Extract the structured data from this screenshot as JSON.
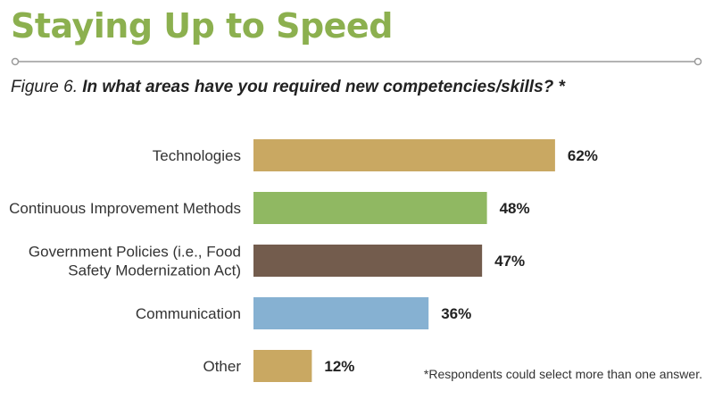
{
  "header": {
    "title": "Staying Up to Speed",
    "figure_label": "Figure 6.",
    "question": "In what areas have you required new competencies/skills? *"
  },
  "footnote": "*Respondents could select more than one answer.",
  "colors": {
    "title": "#8cb04f",
    "rule": "#9a9a9a"
  },
  "chart_data": {
    "type": "bar",
    "orientation": "horizontal",
    "title": "In what areas have you required new competencies/skills? *",
    "categories": [
      [
        "Technologies"
      ],
      [
        "Continuous Improvement Methods"
      ],
      [
        "Government Policies (i.e., Food",
        "Safety Modernization Act)"
      ],
      [
        "Communication"
      ],
      [
        "Other"
      ]
    ],
    "values": [
      62,
      48,
      47,
      36,
      12
    ],
    "value_labels": [
      "62%",
      "48%",
      "47%",
      "36%",
      "12%"
    ],
    "bar_colors": [
      "#c9a862",
      "#90b862",
      "#735c4d",
      "#86b1d2",
      "#c9a862"
    ],
    "xlim": [
      0,
      100
    ],
    "grid": false,
    "legend": "none"
  }
}
